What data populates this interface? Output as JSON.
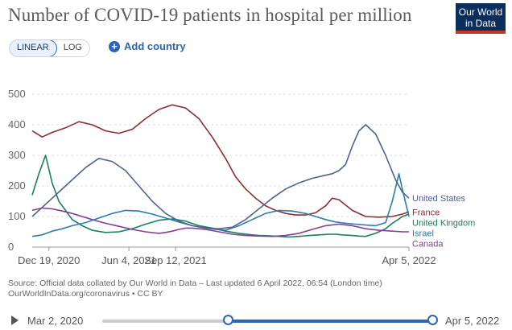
{
  "header": {
    "title": "Number of COVID-19 patients in hospital per million",
    "logo_line1": "Our World",
    "logo_line2": "in Data"
  },
  "controls": {
    "linear_label": "LINEAR",
    "log_label": "LOG",
    "add_country_label": "Add country",
    "plus_glyph": "+"
  },
  "footer": {
    "source_line1": "Source: Official data collated by Our World in Data – Last updated 6 April 2022, 06:54 (London time)",
    "source_line2": "OurWorldInData.org/coronavirus • CC BY"
  },
  "timeline": {
    "start_label": "Mar 2, 2020",
    "end_label": "Apr 5, 2022"
  },
  "chart_data": {
    "type": "line",
    "title": "Number of COVID-19 patients in hospital per million",
    "xlabel": "",
    "ylabel": "",
    "ylim": [
      0,
      550
    ],
    "xlim": [
      0,
      113
    ],
    "x_unit": "weeks since Mar 2, 2020",
    "y_ticks": [
      0,
      100,
      200,
      300,
      400,
      500
    ],
    "x_ticks": [
      {
        "label": "Dec 19, 2020",
        "x": 5
      },
      {
        "label": "Jun 4, 2021",
        "x": 29
      },
      {
        "label": "Sep 12, 2021",
        "x": 43
      },
      {
        "label": "Apr 5, 2022",
        "x": 113
      }
    ],
    "grid": true,
    "series": [
      {
        "name": "France",
        "color": "#8c2e33",
        "x": [
          0,
          3,
          6,
          10,
          14,
          18,
          22,
          26,
          30,
          34,
          38,
          42,
          46,
          50,
          54,
          58,
          61,
          64,
          67,
          70,
          73,
          76,
          79,
          82,
          85,
          88,
          90,
          92,
          96,
          100,
          104,
          108,
          111,
          113
        ],
        "values": [
          380,
          360,
          375,
          390,
          410,
          400,
          380,
          372,
          385,
          420,
          450,
          465,
          455,
          420,
          360,
          290,
          230,
          190,
          160,
          135,
          120,
          110,
          105,
          105,
          112,
          135,
          160,
          155,
          120,
          100,
          98,
          100,
          108,
          115
        ]
      },
      {
        "name": "United Kingdom",
        "color": "#18805e",
        "x": [
          0,
          2,
          4,
          6,
          8,
          10,
          12,
          15,
          18,
          22,
          26,
          30,
          34,
          38,
          42,
          46,
          50,
          54,
          58,
          62,
          66,
          68,
          71,
          74,
          77,
          80,
          83,
          86,
          89,
          91,
          93,
          96,
          98,
          100,
          103,
          106,
          108,
          110,
          111,
          113
        ],
        "values": [
          170,
          240,
          300,
          210,
          150,
          120,
          90,
          70,
          55,
          48,
          50,
          60,
          75,
          88,
          92,
          85,
          70,
          62,
          52,
          45,
          40,
          38,
          37,
          35,
          33,
          35,
          38,
          40,
          42,
          42,
          40,
          38,
          36,
          35,
          45,
          60,
          78,
          92,
          100,
          108
        ]
      },
      {
        "name": "Canada",
        "color": "#883b9a",
        "x": [
          0,
          3,
          6,
          9,
          12,
          15,
          18,
          22,
          26,
          30,
          34,
          38,
          40,
          42,
          44,
          46,
          48,
          52,
          56,
          60,
          64,
          68,
          72,
          76,
          80,
          84,
          88,
          92,
          96,
          100,
          104,
          108,
          111,
          113
        ],
        "values": [
          120,
          128,
          125,
          118,
          110,
          100,
          90,
          78,
          68,
          58,
          50,
          45,
          48,
          52,
          58,
          62,
          62,
          58,
          50,
          42,
          38,
          36,
          35,
          38,
          45,
          58,
          70,
          75,
          70,
          60,
          55,
          52,
          50,
          50
        ]
      },
      {
        "name": "Israel",
        "color": "#2c7dab",
        "x": [
          0,
          3,
          6,
          9,
          12,
          16,
          20,
          24,
          28,
          32,
          36,
          40,
          44,
          48,
          52,
          55,
          58,
          62,
          66,
          70,
          74,
          78,
          82,
          85,
          88,
          91,
          94,
          97,
          100,
          103,
          106,
          108,
          110,
          111,
          113
        ],
        "values": [
          35,
          40,
          52,
          60,
          70,
          80,
          95,
          110,
          120,
          118,
          108,
          95,
          82,
          70,
          62,
          58,
          55,
          70,
          90,
          110,
          120,
          118,
          110,
          100,
          90,
          82,
          78,
          75,
          72,
          70,
          80,
          150,
          240,
          190,
          100
        ]
      },
      {
        "name": "United States",
        "color": "#50628f",
        "x": [
          0,
          4,
          8,
          12,
          16,
          20,
          24,
          28,
          32,
          36,
          40,
          44,
          48,
          52,
          56,
          60,
          64,
          68,
          72,
          76,
          80,
          84,
          88,
          90,
          92,
          94,
          96,
          98,
          100,
          103,
          106,
          109,
          111,
          113
        ],
        "values": [
          100,
          140,
          180,
          220,
          260,
          290,
          280,
          250,
          200,
          150,
          110,
          85,
          70,
          62,
          60,
          65,
          90,
          125,
          160,
          190,
          210,
          225,
          235,
          240,
          250,
          270,
          330,
          380,
          400,
          370,
          300,
          220,
          180,
          160
        ]
      }
    ]
  }
}
